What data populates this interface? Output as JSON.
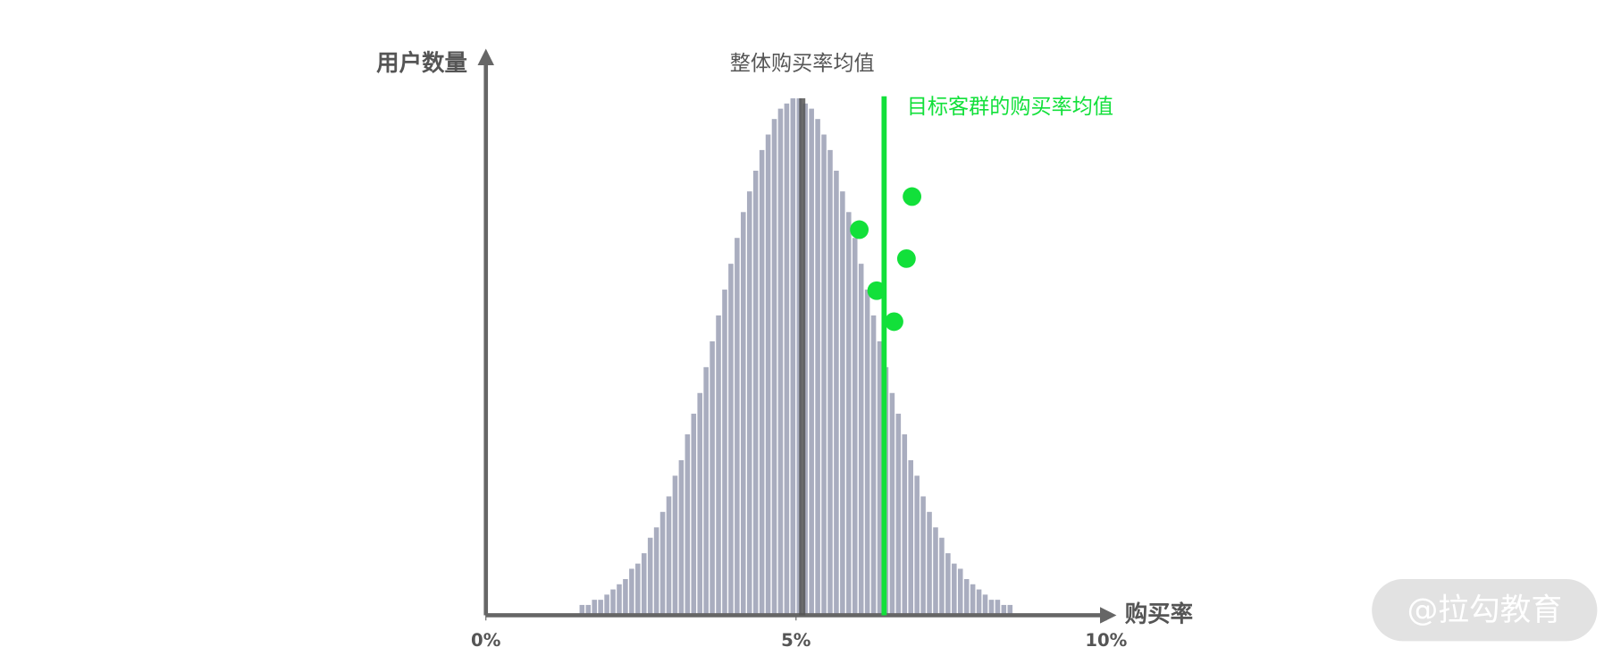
{
  "chart_data": {
    "type": "histogram",
    "y_label": "用户数量",
    "x_label": "购买率",
    "bins": [
      1.5,
      1.6,
      1.7,
      1.8,
      1.9,
      2.0,
      2.1,
      2.2,
      2.3,
      2.4,
      2.5,
      2.6,
      2.7,
      2.8,
      2.9,
      3.0,
      3.1,
      3.2,
      3.3,
      3.4,
      3.5,
      3.6,
      3.7,
      3.8,
      3.9,
      4.0,
      4.1,
      4.2,
      4.3,
      4.4,
      4.5,
      4.6,
      4.7,
      4.8,
      4.9,
      5.0,
      5.1,
      5.2,
      5.3,
      5.4,
      5.5,
      5.6,
      5.7,
      5.8,
      5.9,
      6.0,
      6.1,
      6.2,
      6.3,
      6.4,
      6.5,
      6.6,
      6.7,
      6.8,
      6.9,
      7.0,
      7.1,
      7.2,
      7.3,
      7.4,
      7.5,
      7.6,
      7.7,
      7.8,
      7.9,
      8.0,
      8.1,
      8.2,
      8.3,
      8.4,
      8.5
    ],
    "values": [
      2,
      2,
      3,
      3,
      4,
      5,
      6,
      7,
      9,
      10,
      12,
      15,
      17,
      20,
      23,
      27,
      30,
      35,
      39,
      43,
      48,
      53,
      58,
      63,
      68,
      73,
      78,
      82,
      86,
      90,
      93,
      96,
      98,
      99,
      100,
      100,
      99,
      98,
      96,
      93,
      90,
      86,
      82,
      78,
      73,
      68,
      63,
      58,
      53,
      48,
      43,
      39,
      35,
      30,
      27,
      23,
      20,
      17,
      15,
      12,
      10,
      9,
      7,
      6,
      5,
      4,
      3,
      3,
      2,
      2
    ],
    "color": "#a9adbf",
    "xlim": [
      0,
      10
    ],
    "ylim": [
      0,
      100
    ],
    "xticks": [
      {
        "value": 0,
        "label": "0%"
      },
      {
        "value": 5,
        "label": "5%"
      },
      {
        "value": 10,
        "label": "10%"
      }
    ],
    "reference_lines": [
      {
        "label": "整体购买率均值",
        "value": 5.1,
        "color": "#555555"
      },
      {
        "label": "目标客群的购买率均值",
        "value": 6.42,
        "color": "#12e03a"
      }
    ],
    "points": {
      "x": [
        6.02,
        6.87,
        6.78,
        6.3,
        6.58
      ],
      "y": [
        74.6,
        81,
        69,
        62.8,
        56.8
      ],
      "color": "#12e03a"
    }
  },
  "watermark": "@拉勾教育"
}
